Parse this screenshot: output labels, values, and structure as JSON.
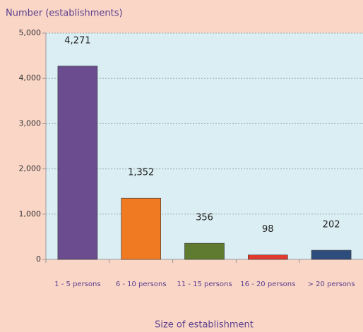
{
  "chart_data": {
    "type": "bar",
    "y_axis_label": "Number (establishments)",
    "x_axis_label": "Size of establishment",
    "categories": [
      "1 - 5 persons",
      "6 - 10 persons",
      "11 - 15 persons",
      "16 - 20 persons",
      "> 20 persons"
    ],
    "values": [
      4271,
      1352,
      356,
      98,
      202
    ],
    "value_labels": [
      "4,271",
      "1,352",
      "356",
      "98",
      "202"
    ],
    "colors": [
      "#6b4d8f",
      "#f07a22",
      "#5f7b2f",
      "#e23b2e",
      "#2f4d7c"
    ],
    "ylim": [
      0,
      5000
    ],
    "yticks": [
      0,
      {
        "value": 1000,
        "label": "1,000"
      },
      {
        "value": 2000,
        "label": "2,000"
      },
      {
        "value": 3000,
        "label": "3,000"
      },
      {
        "value": 4000,
        "label": "4,000"
      },
      {
        "value": 5000,
        "label": "5,000"
      }
    ],
    "grid": true
  }
}
